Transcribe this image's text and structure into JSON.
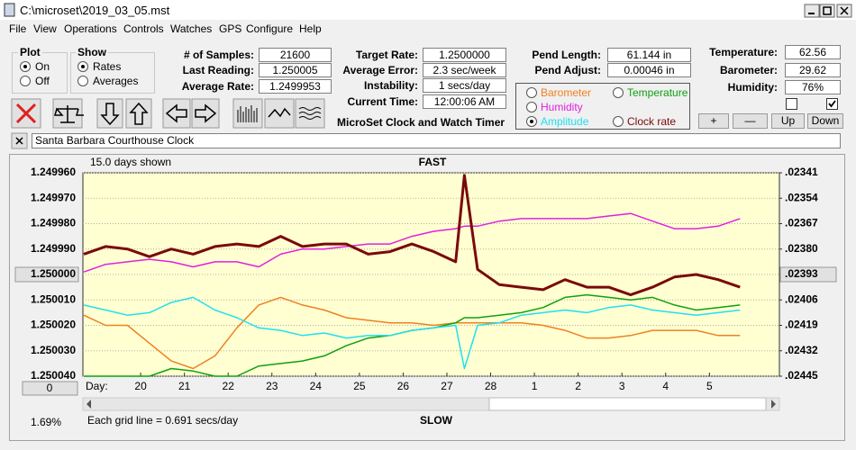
{
  "window": {
    "title": "C:\\microset\\2019_03_05.mst"
  },
  "menu": [
    "File",
    "View",
    "Operations",
    "Controls",
    "Watches",
    "GPS",
    "Configure",
    "Help"
  ],
  "plot_group": {
    "title": "Plot",
    "options": [
      {
        "label": "On",
        "checked": true
      },
      {
        "label": "Off",
        "checked": false
      }
    ]
  },
  "show_group": {
    "title": "Show",
    "options": [
      {
        "label": "Rates",
        "checked": true
      },
      {
        "label": "Averages",
        "checked": false
      }
    ]
  },
  "stats": [
    {
      "label": "# of Samples:",
      "value": "21600"
    },
    {
      "label": "Last Reading:",
      "value": "1.250005"
    },
    {
      "label": "Average Rate:",
      "value": "1.2499953"
    }
  ],
  "timing": [
    {
      "label": "Target Rate:",
      "value": "1.2500000"
    },
    {
      "label": "Average Error:",
      "value": "2.3 sec/week"
    },
    {
      "label": "Instability:",
      "value": "1 secs/day"
    },
    {
      "label": "Current Time:",
      "value": "12:00:06 AM"
    }
  ],
  "app_name": "MicroSet Clock and Watch Timer",
  "pendulum": [
    {
      "label": "Pend Length:",
      "value": "61.144 in"
    },
    {
      "label": "Pend Adjust:",
      "value": "0.00046 in"
    }
  ],
  "environment": [
    {
      "label": "Temperature:",
      "value": "62.56"
    },
    {
      "label": "Barometer:",
      "value": "29.62"
    },
    {
      "label": "Humidity:",
      "value": "76%"
    }
  ],
  "checkboxes": [
    {
      "checked": false
    },
    {
      "checked": true
    }
  ],
  "buttons": [
    "+",
    "—",
    "Up",
    "Down"
  ],
  "watch": "Santa Barbara Courthouse Clock",
  "status_left": "1.69%",
  "chart_data": {
    "type": "line",
    "title": "FAST",
    "subtitle": "15.0 days shown",
    "footer": "SLOW",
    "note": "Each grid line = 0.691 secs/day",
    "x_label": "Day:",
    "x_button": "0",
    "x": [
      -1.3,
      -0.8,
      -0.3,
      0.2,
      0.7,
      1.2,
      1.7,
      2.2,
      2.7,
      3.2,
      3.7,
      4.2,
      4.7,
      5.2,
      5.7,
      6.2,
      6.7,
      7.2,
      7.4,
      7.7,
      8.2,
      8.7,
      9.2,
      9.7,
      10.2,
      10.7,
      11.2,
      11.7,
      12.2,
      12.7,
      13.2,
      13.7
    ],
    "xlim": [
      -1.32,
      14.6
    ],
    "xticks": [
      {
        "value": 0,
        "label": "20"
      },
      {
        "value": 1,
        "label": "21"
      },
      {
        "value": 2,
        "label": "22"
      },
      {
        "value": 3,
        "label": "23"
      },
      {
        "value": 4,
        "label": "24"
      },
      {
        "value": 5,
        "label": "25"
      },
      {
        "value": 6,
        "label": "26"
      },
      {
        "value": 7,
        "label": "27"
      },
      {
        "value": 8,
        "label": "28"
      },
      {
        "value": 9,
        "label": "1"
      },
      {
        "value": 10,
        "label": "2"
      },
      {
        "value": 11,
        "label": "3"
      },
      {
        "value": 12,
        "label": "4"
      },
      {
        "value": 13,
        "label": "5"
      }
    ],
    "ylim": [
      1.24996,
      1.25004
    ],
    "y_inverted": true,
    "yticks": [
      {
        "value": 1.24996,
        "label": "1.249960"
      },
      {
        "value": 1.24997,
        "label": "1.249970"
      },
      {
        "value": 1.24998,
        "label": "1.249980"
      },
      {
        "value": 1.24999,
        "label": "1.249990"
      },
      {
        "value": 1.25,
        "label": "1.250000",
        "highlight": true
      },
      {
        "value": 1.25001,
        "label": "1.250010"
      },
      {
        "value": 1.25002,
        "label": "1.250020"
      },
      {
        "value": 1.25003,
        "label": "1.250030"
      },
      {
        "value": 1.25004,
        "label": "1.250040"
      }
    ],
    "y2lim": [
      0.02341,
      0.02445
    ],
    "y2ticks": [
      {
        "value": 0.02341,
        "label": ".02341"
      },
      {
        "value": 0.02354,
        "label": ".02354"
      },
      {
        "value": 0.02367,
        "label": ".02367"
      },
      {
        "value": 0.0238,
        "label": ".02380"
      },
      {
        "value": 0.02393,
        "label": ".02393",
        "highlight": true
      },
      {
        "value": 0.02406,
        "label": ".02406"
      },
      {
        "value": 0.02419,
        "label": ".02419"
      },
      {
        "value": 0.02432,
        "label": ".02432"
      },
      {
        "value": 0.02445,
        "label": ".02445"
      }
    ],
    "grid": true,
    "plot_background": "#ffffd2",
    "series": [
      {
        "name": "Barometer",
        "color": "#f08020",
        "width": 1.5,
        "selected": false,
        "values": [
          1.250016,
          1.25002,
          1.25002,
          1.250027,
          1.250034,
          1.250037,
          1.250032,
          1.250021,
          1.250012,
          1.250009,
          1.250012,
          1.250014,
          1.250017,
          1.250018,
          1.250019,
          1.250019,
          1.25002,
          1.250019,
          1.250019,
          1.250019,
          1.250019,
          1.250019,
          1.25002,
          1.250022,
          1.250025,
          1.250025,
          1.250024,
          1.250022,
          1.250022,
          1.250022,
          1.250024,
          1.250024
        ]
      },
      {
        "name": "Temperature",
        "color": "#10a010",
        "width": 1.5,
        "selected": false,
        "values": [
          1.25004,
          1.25004,
          1.25004,
          1.25004,
          1.250037,
          1.250038,
          1.25004,
          1.25004,
          1.250036,
          1.250035,
          1.250034,
          1.250032,
          1.250028,
          1.250025,
          1.250024,
          1.250022,
          1.250021,
          1.250019,
          1.250017,
          1.250017,
          1.250016,
          1.250015,
          1.250013,
          1.250009,
          1.250008,
          1.250009,
          1.25001,
          1.250009,
          1.250012,
          1.250014,
          1.250013,
          1.250012
        ]
      },
      {
        "name": "Humidity",
        "color": "#e020e0",
        "width": 1.5,
        "selected": false,
        "values": [
          1.249999,
          1.249996,
          1.249995,
          1.249994,
          1.249995,
          1.249997,
          1.249995,
          1.249995,
          1.249997,
          1.249992,
          1.24999,
          1.24999,
          1.249989,
          1.249988,
          1.249988,
          1.249985,
          1.249983,
          1.249982,
          1.249981,
          1.249981,
          1.249979,
          1.249978,
          1.249978,
          1.249978,
          1.249978,
          1.249977,
          1.249976,
          1.249979,
          1.249982,
          1.249982,
          1.249981,
          1.249978
        ]
      },
      {
        "name": "Amplitude",
        "color": "#20e0f0",
        "width": 1.5,
        "selected": true,
        "values": [
          1.250012,
          1.250014,
          1.250016,
          1.250015,
          1.250011,
          1.250009,
          1.250014,
          1.250017,
          1.250021,
          1.250022,
          1.250024,
          1.250023,
          1.250025,
          1.250024,
          1.250024,
          1.250022,
          1.250021,
          1.25002,
          1.250037,
          1.25002,
          1.250019,
          1.250016,
          1.250015,
          1.250014,
          1.250015,
          1.250013,
          1.250012,
          1.250014,
          1.250015,
          1.250016,
          1.250015,
          1.250014
        ]
      },
      {
        "name": "Clock rate",
        "color": "#7a0a0a",
        "width": 3,
        "selected": false,
        "values": [
          1.249992,
          1.249989,
          1.24999,
          1.249993,
          1.24999,
          1.249992,
          1.249989,
          1.249988,
          1.249989,
          1.249985,
          1.249989,
          1.249988,
          1.249988,
          1.249992,
          1.249991,
          1.249988,
          1.249991,
          1.249995,
          1.249961,
          1.249998,
          1.250004,
          1.250005,
          1.250006,
          1.250002,
          1.250005,
          1.250005,
          1.250008,
          1.250005,
          1.250001,
          1.25,
          1.250002,
          1.250005
        ]
      }
    ]
  }
}
